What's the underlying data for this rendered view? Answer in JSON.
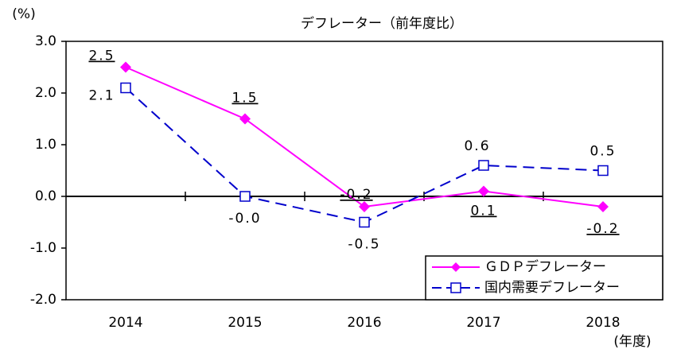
{
  "chart_data": {
    "type": "line",
    "title": "デフレーター（前年度比）",
    "y_unit": "(%)",
    "x_unit": "(年度)",
    "categories": [
      "2014",
      "2015",
      "2016",
      "2017",
      "2018"
    ],
    "series": [
      {
        "name": "ＧＤＰデフレーター",
        "color": "#ff00ff",
        "marker": "diamond",
        "dashed": false,
        "label_underline": true,
        "values": [
          2.5,
          1.5,
          -0.2,
          0.1,
          -0.2
        ],
        "value_labels": [
          "2.5",
          "1.5",
          "-0.2",
          "0.1",
          "-0.2"
        ]
      },
      {
        "name": "国内需要デフレーター",
        "color": "#0000cc",
        "marker": "square",
        "dashed": true,
        "label_underline": false,
        "values": [
          2.1,
          0,
          -0.5,
          0.6,
          0.5
        ],
        "value_labels": [
          "2.1",
          "-0.0",
          "-0.5",
          "0.6",
          "0.5"
        ]
      }
    ],
    "ylim": [
      -2,
      3
    ],
    "yticks": [
      {
        "value": -2,
        "label": "-2.0"
      },
      {
        "value": -1,
        "label": "-1.0"
      },
      {
        "value": 0,
        "label": "0.0"
      },
      {
        "value": 1,
        "label": "1.0"
      },
      {
        "value": 2,
        "label": "2.0"
      },
      {
        "value": 3,
        "label": "3.0"
      }
    ],
    "legend": "lower right"
  }
}
